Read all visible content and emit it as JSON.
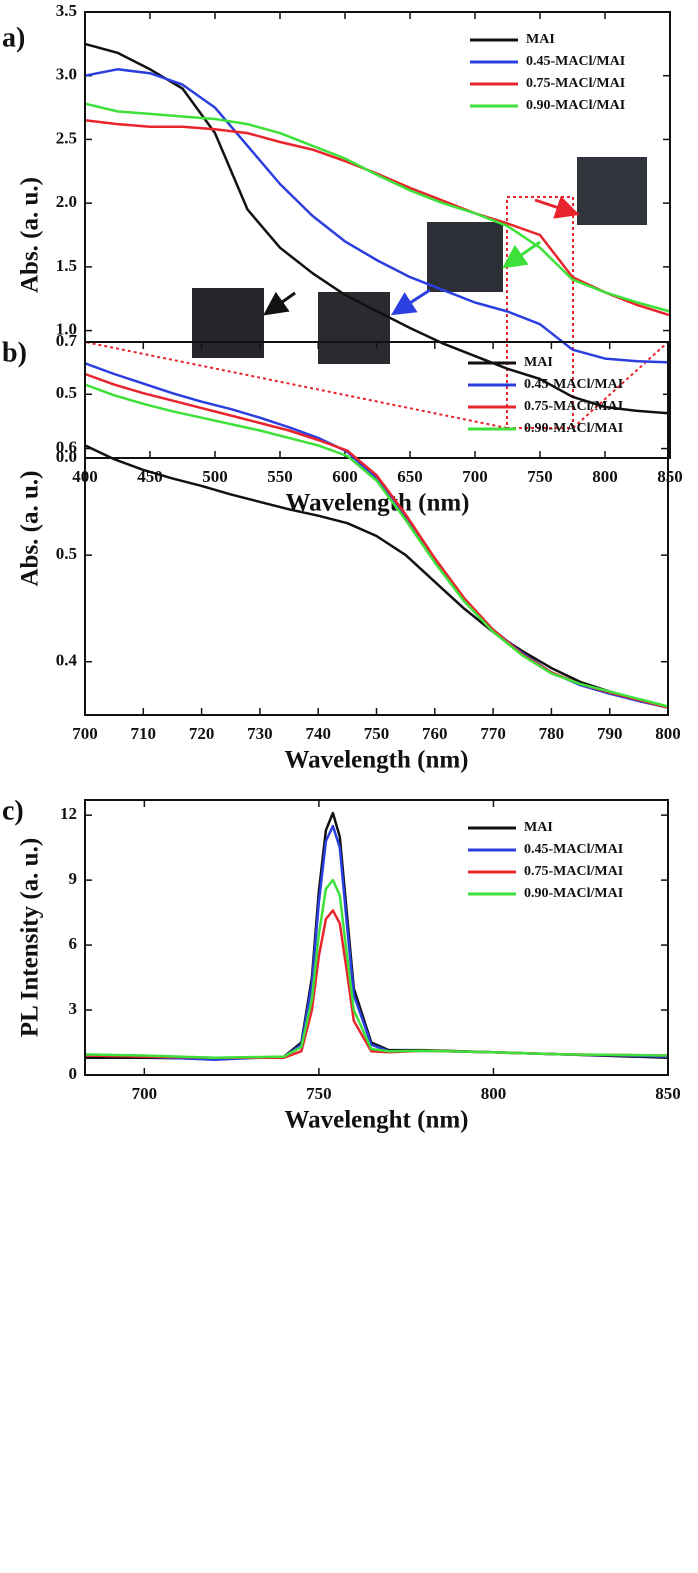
{
  "chart_data": [
    {
      "type": "line",
      "label": "a)",
      "xlabel": "Wavelength (nm)",
      "ylabel": "Abs. (a. u.)",
      "x": [
        400,
        425,
        450,
        475,
        500,
        525,
        550,
        575,
        600,
        625,
        650,
        675,
        700,
        725,
        750,
        775,
        800,
        825,
        850
      ],
      "series": [
        {
          "name": "MAI",
          "color": "#111111",
          "values": [
            3.25,
            3.18,
            3.05,
            2.9,
            2.55,
            1.95,
            1.65,
            1.45,
            1.28,
            1.15,
            1.02,
            0.9,
            0.8,
            0.7,
            0.62,
            0.48,
            0.4,
            0.37,
            0.35
          ]
        },
        {
          "name": "0.45-MACl/MAI",
          "color": "#2b3fe0",
          "values": [
            3.0,
            3.05,
            3.02,
            2.93,
            2.75,
            2.45,
            2.15,
            1.9,
            1.7,
            1.55,
            1.42,
            1.32,
            1.22,
            1.15,
            1.05,
            0.85,
            0.78,
            0.76,
            0.75
          ]
        },
        {
          "name": "0.75-MACl/MAI",
          "color": "#e8242c",
          "values": [
            2.65,
            2.62,
            2.6,
            2.6,
            2.58,
            2.55,
            2.48,
            2.42,
            2.33,
            2.23,
            2.12,
            2.02,
            1.92,
            1.84,
            1.75,
            1.42,
            1.3,
            1.2,
            1.12
          ]
        },
        {
          "name": "0.90-MACl/MAI",
          "color": "#3ee03a",
          "values": [
            2.78,
            2.72,
            2.7,
            2.68,
            2.66,
            2.62,
            2.55,
            2.45,
            2.35,
            2.22,
            2.1,
            2.0,
            1.92,
            1.82,
            1.65,
            1.4,
            1.3,
            1.22,
            1.15
          ]
        }
      ],
      "xlim": [
        400,
        850
      ],
      "xticks": [
        400,
        450,
        500,
        550,
        600,
        650,
        700,
        750,
        800,
        850
      ],
      "ylim": [
        0,
        3.5
      ],
      "yticks": [
        {
          "value": 0,
          "label": "0.0"
        },
        0.5,
        {
          "value": 1,
          "label": "1.0"
        },
        1.5,
        {
          "value": 2,
          "label": "2.0"
        },
        2.5,
        {
          "value": 3,
          "label": "3.0"
        },
        3.5
      ],
      "legend": "upper right",
      "grid": false
    },
    {
      "type": "line",
      "label": "b)",
      "xlabel": "Wavelength (nm)",
      "ylabel": "Abs. (a. u.)",
      "x": [
        700,
        705,
        710,
        715,
        720,
        725,
        730,
        735,
        740,
        745,
        750,
        755,
        760,
        765,
        770,
        775,
        780,
        785,
        790,
        795,
        800
      ],
      "series": [
        {
          "name": "MAI",
          "color": "#111111",
          "values": [
            0.603,
            0.59,
            0.58,
            0.572,
            0.565,
            0.557,
            0.55,
            0.543,
            0.537,
            0.53,
            0.518,
            0.5,
            0.475,
            0.45,
            0.428,
            0.41,
            0.394,
            0.381,
            0.372,
            0.364,
            0.357
          ]
        },
        {
          "name": "0.45-MACl/MAI",
          "color": "#2b3fe0",
          "values": [
            0.68,
            0.67,
            0.661,
            0.652,
            0.644,
            0.637,
            0.629,
            0.62,
            0.61,
            0.597,
            0.572,
            0.535,
            0.495,
            0.458,
            0.43,
            0.408,
            0.39,
            0.378,
            0.37,
            0.363,
            0.357
          ]
        },
        {
          "name": "0.75-MACl/MAI",
          "color": "#e8242c",
          "values": [
            0.67,
            0.66,
            0.652,
            0.645,
            0.638,
            0.631,
            0.624,
            0.617,
            0.608,
            0.598,
            0.575,
            0.538,
            0.497,
            0.46,
            0.43,
            0.407,
            0.39,
            0.379,
            0.371,
            0.364,
            0.357
          ]
        },
        {
          "name": "0.90-MACl/MAI",
          "color": "#3ee03a",
          "values": [
            0.66,
            0.65,
            0.642,
            0.635,
            0.629,
            0.623,
            0.617,
            0.61,
            0.603,
            0.593,
            0.57,
            0.533,
            0.493,
            0.457,
            0.428,
            0.406,
            0.389,
            0.379,
            0.372,
            0.365,
            0.358
          ]
        }
      ],
      "xlim": [
        700,
        800
      ],
      "xticks": [
        700,
        710,
        720,
        730,
        740,
        750,
        760,
        770,
        780,
        790,
        800
      ],
      "ylim": [
        0.35,
        0.7
      ],
      "yticks": [
        0.4,
        0.5,
        0.6,
        0.7
      ],
      "legend": "upper right",
      "grid": false
    },
    {
      "type": "line",
      "label": "c)",
      "xlabel": "Wavelenght (nm)",
      "ylabel": "PL Intensity (a. u.)",
      "x": [
        683,
        700,
        720,
        740,
        745,
        748,
        750,
        752,
        754,
        756,
        758,
        760,
        765,
        770,
        780,
        800,
        820,
        850
      ],
      "series": [
        {
          "name": "MAI",
          "color": "#111111",
          "values": [
            0.8,
            0.8,
            0.75,
            0.85,
            1.5,
            4.5,
            8.5,
            11.3,
            12.1,
            11.0,
            7.5,
            4.0,
            1.5,
            1.15,
            1.15,
            1.05,
            0.95,
            0.8
          ]
        },
        {
          "name": "0.45-MACl/MAI",
          "color": "#2b3fe0",
          "values": [
            0.9,
            0.85,
            0.7,
            0.85,
            1.4,
            4.2,
            8.0,
            10.8,
            11.5,
            10.5,
            7.0,
            3.7,
            1.4,
            1.1,
            1.12,
            1.05,
            0.95,
            0.85
          ]
        },
        {
          "name": "0.75-MACl/MAI",
          "color": "#e8242c",
          "values": [
            0.9,
            0.85,
            0.8,
            0.8,
            1.1,
            3.0,
            5.5,
            7.2,
            7.6,
            7.0,
            4.8,
            2.5,
            1.1,
            1.05,
            1.12,
            1.05,
            0.95,
            0.9
          ]
        },
        {
          "name": "0.90-MACl/MAI",
          "color": "#3ee03a",
          "values": [
            0.95,
            0.9,
            0.8,
            0.85,
            1.3,
            3.5,
            6.5,
            8.6,
            9.0,
            8.3,
            5.6,
            3.0,
            1.2,
            1.1,
            1.12,
            1.05,
            0.95,
            0.9
          ]
        }
      ],
      "xlim": [
        683,
        850
      ],
      "xticks": [
        700,
        750,
        800,
        850
      ],
      "ylim": [
        0,
        12.7
      ],
      "yticks": [
        0,
        3,
        6,
        9,
        12
      ],
      "legend": "upper right",
      "grid": false
    }
  ]
}
